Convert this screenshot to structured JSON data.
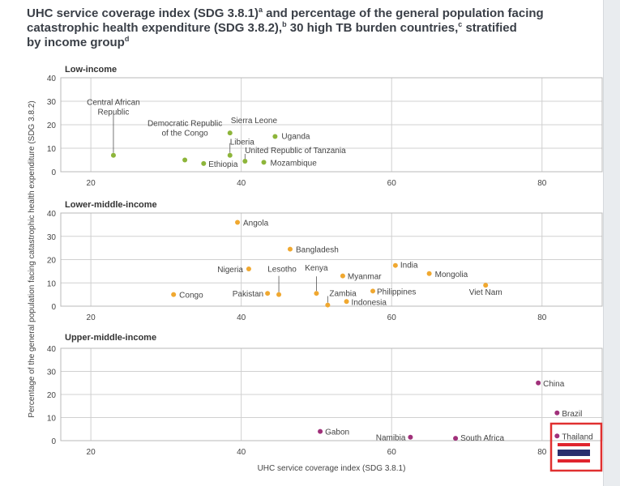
{
  "title": {
    "line1": "UHC service coverage index (SDG 3.8.1)",
    "sup_a": "a",
    "line1_end": " and percentage of the general population facing",
    "line2": "catastrophic health expenditure (SDG 3.8.2),",
    "sup_b": "b",
    "line2_mid": " 30 high TB burden countries,",
    "sup_c": "c",
    "line2_end": " stratified",
    "line3": "by income group",
    "sup_d": "d"
  },
  "chart_data": {
    "type": "scatter",
    "xlabel": "UHC service coverage index (SDG 3.8.1)",
    "ylabel": "Percentage of the general population facing catastrophic health expenditure (SDG 3.8.2)",
    "xlim": [
      16,
      88
    ],
    "ylim": [
      0,
      40
    ],
    "x_ticks": [
      20,
      40,
      60,
      80
    ],
    "y_ticks": [
      0,
      10,
      20,
      30,
      40
    ],
    "grid": true,
    "panels": [
      {
        "title": "Low-income",
        "color": "#8db53a",
        "points": [
          {
            "label": "Central African\nRepublic",
            "x": 23,
            "y": 7
          },
          {
            "label": "Democratic Republic\nof the Congo",
            "x": 32.5,
            "y": 5
          },
          {
            "label": "Ethiopia",
            "x": 35,
            "y": 3.5
          },
          {
            "label": "Sierra Leone",
            "x": 38.5,
            "y": 16.5
          },
          {
            "label": "Liberia",
            "x": 38.5,
            "y": 7
          },
          {
            "label": "United Republic of Tanzania",
            "x": 40.5,
            "y": 4.5
          },
          {
            "label": "Uganda",
            "x": 44.5,
            "y": 15
          },
          {
            "label": "Mozambique",
            "x": 43,
            "y": 4
          }
        ]
      },
      {
        "title": "Lower-middle-income",
        "color": "#f0a830",
        "points": [
          {
            "label": "Congo",
            "x": 31,
            "y": 5
          },
          {
            "label": "Angola",
            "x": 39.5,
            "y": 36
          },
          {
            "label": "Nigeria",
            "x": 41,
            "y": 16
          },
          {
            "label": "Pakistan",
            "x": 43.5,
            "y": 5.5
          },
          {
            "label": "Lesotho",
            "x": 45,
            "y": 5
          },
          {
            "label": "Bangladesh",
            "x": 46.5,
            "y": 24.5
          },
          {
            "label": "Kenya",
            "x": 50,
            "y": 5.5
          },
          {
            "label": "Zambia",
            "x": 51.5,
            "y": 0.5
          },
          {
            "label": "Myanmar",
            "x": 53.5,
            "y": 13
          },
          {
            "label": "Indonesia",
            "x": 54,
            "y": 2
          },
          {
            "label": "Philippines",
            "x": 57.5,
            "y": 6.5
          },
          {
            "label": "India",
            "x": 60.5,
            "y": 17.5
          },
          {
            "label": "Mongolia",
            "x": 65,
            "y": 14
          },
          {
            "label": "Viet Nam",
            "x": 72.5,
            "y": 9
          }
        ]
      },
      {
        "title": "Upper-middle-income",
        "color": "#a0307a",
        "points": [
          {
            "label": "Gabon",
            "x": 50.5,
            "y": 4
          },
          {
            "label": "Namibia",
            "x": 62.5,
            "y": 1.5
          },
          {
            "label": "South Africa",
            "x": 68.5,
            "y": 1
          },
          {
            "label": "China",
            "x": 79.5,
            "y": 25
          },
          {
            "label": "Brazil",
            "x": 82,
            "y": 12
          },
          {
            "label": "Thailand",
            "x": 82,
            "y": 2
          }
        ]
      }
    ]
  },
  "annotation": {
    "highlight_label": "Thailand",
    "highlight_color": "#e03030",
    "flag": {
      "red": "#e0242e",
      "white": "#ffffff",
      "blue": "#2a2f6e"
    }
  }
}
